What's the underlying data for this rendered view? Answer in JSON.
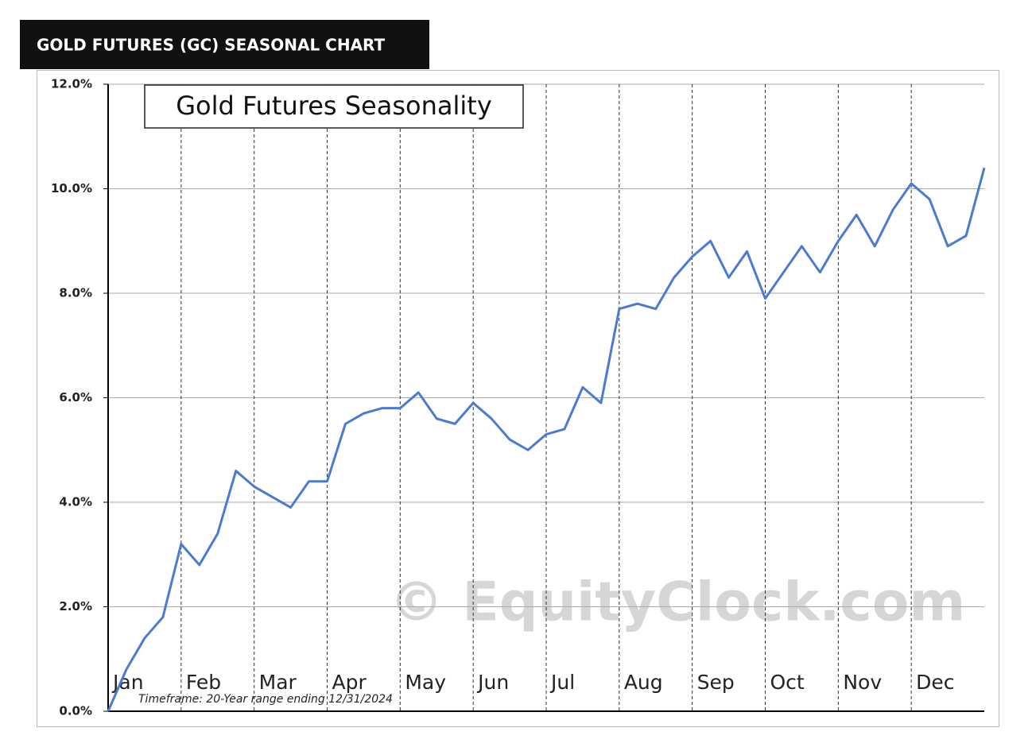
{
  "header": "GOLD FUTURES (GC) SEASONAL CHART",
  "chart_data": {
    "type": "line",
    "title": "Gold Futures Seasonality",
    "watermark": "© EquityClock.com",
    "note": "Timeframe: 20-Year range ending 12/31/2024",
    "categories": [
      "Jan",
      null,
      null,
      null,
      "Feb",
      null,
      null,
      null,
      "Mar",
      null,
      null,
      null,
      "Apr",
      null,
      null,
      null,
      "May",
      null,
      null,
      null,
      "Jun",
      null,
      null,
      null,
      "Jul",
      null,
      null,
      null,
      "Aug",
      null,
      null,
      null,
      "Sep",
      null,
      null,
      null,
      "Oct",
      null,
      null,
      null,
      "Nov",
      null,
      null,
      null,
      "Dec",
      null,
      null,
      null,
      null
    ],
    "series": [
      {
        "name": "Gold Futures",
        "color": "#4a7bd0",
        "values": [
          0,
          0.8,
          1.4,
          1.8,
          3.2,
          2.8,
          3.4,
          4.6,
          4.3,
          4.1,
          3.9,
          4.4,
          4.4,
          5.5,
          5.7,
          5.8,
          5.8,
          6.1,
          5.6,
          5.5,
          5.9,
          5.6,
          5.2,
          5.0,
          5.3,
          5.4,
          6.2,
          5.9,
          7.7,
          7.8,
          7.7,
          8.3,
          8.7,
          9.0,
          8.3,
          8.8,
          7.9,
          8.4,
          8.9,
          8.4,
          9.0,
          9.5,
          8.9,
          9.6,
          10.1,
          9.8,
          8.9,
          9.1,
          10.4
        ]
      }
    ],
    "ylim": [
      0,
      12
    ],
    "yticks": [
      {
        "value": 0,
        "label": "0.0%"
      },
      {
        "value": 2,
        "label": "2.0%"
      },
      {
        "value": 4,
        "label": "4.0%"
      },
      {
        "value": 6,
        "label": "6.0%"
      },
      {
        "value": 8,
        "label": "8.0%"
      },
      {
        "value": 10,
        "label": "10.0%"
      },
      {
        "value": 12,
        "label": "12.0%"
      }
    ],
    "grid": true
  }
}
